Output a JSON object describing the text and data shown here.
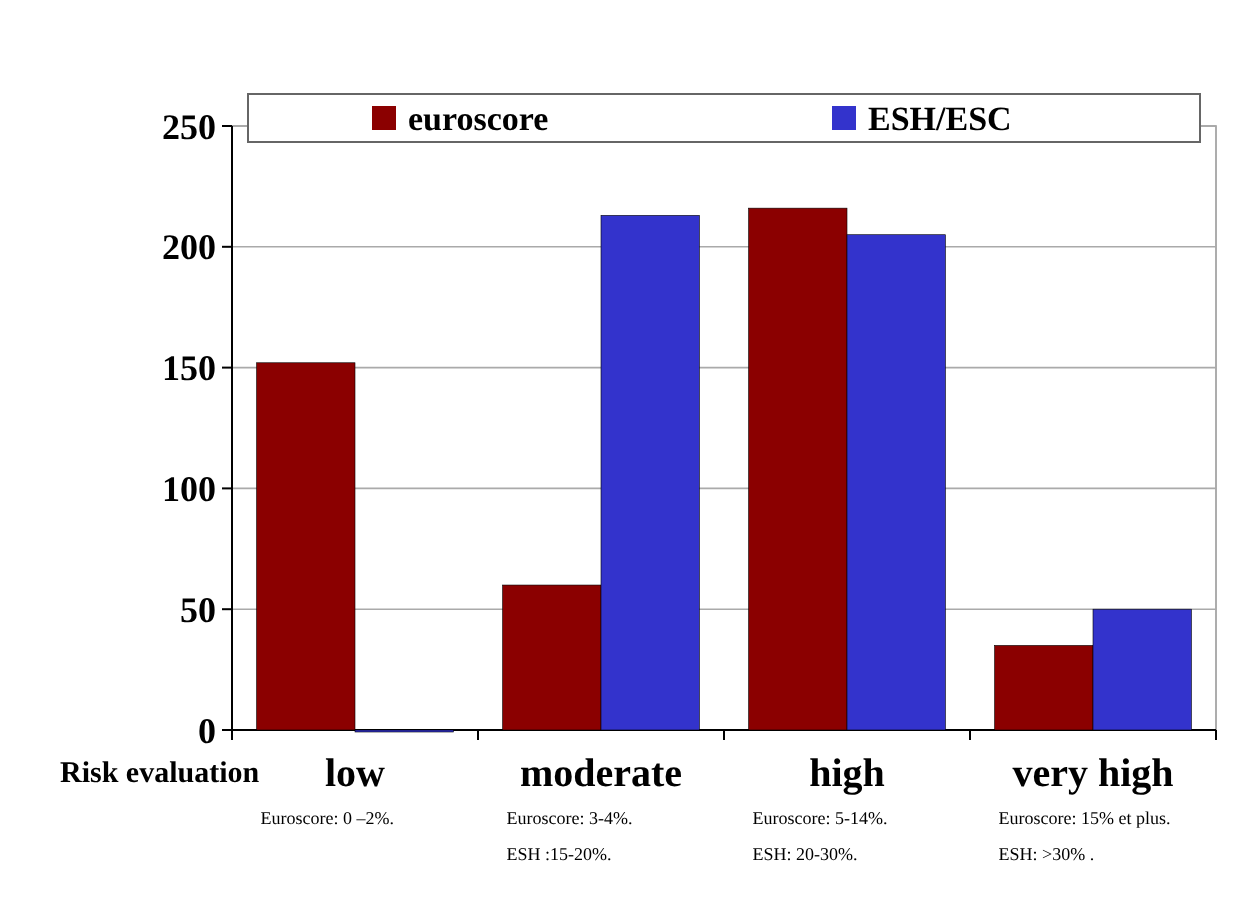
{
  "chart_data": {
    "type": "bar",
    "xlabel": "Risk evaluation",
    "categories": [
      "low",
      "moderate",
      "high",
      "very high"
    ],
    "series": [
      {
        "name": "euroscore",
        "color": "#8b0000",
        "values": [
          152,
          60,
          216,
          35
        ]
      },
      {
        "name": "ESH/ESC",
        "color": "#3333cc",
        "values": [
          0,
          213,
          205,
          50
        ]
      }
    ],
    "ylim": [
      0,
      250
    ],
    "yticks": [
      0,
      50,
      100,
      150,
      200,
      250
    ],
    "grid": "y",
    "legend": "top",
    "annotations": [
      "Euroscore: 0 –2%.",
      "Euroscore: 3-4%.",
      "ESH :15-20%.",
      "Euroscore: 5-14%.",
      "ESH: 20-30%.",
      "Euroscore: 15% et plus.",
      "ESH: >30% ."
    ]
  }
}
